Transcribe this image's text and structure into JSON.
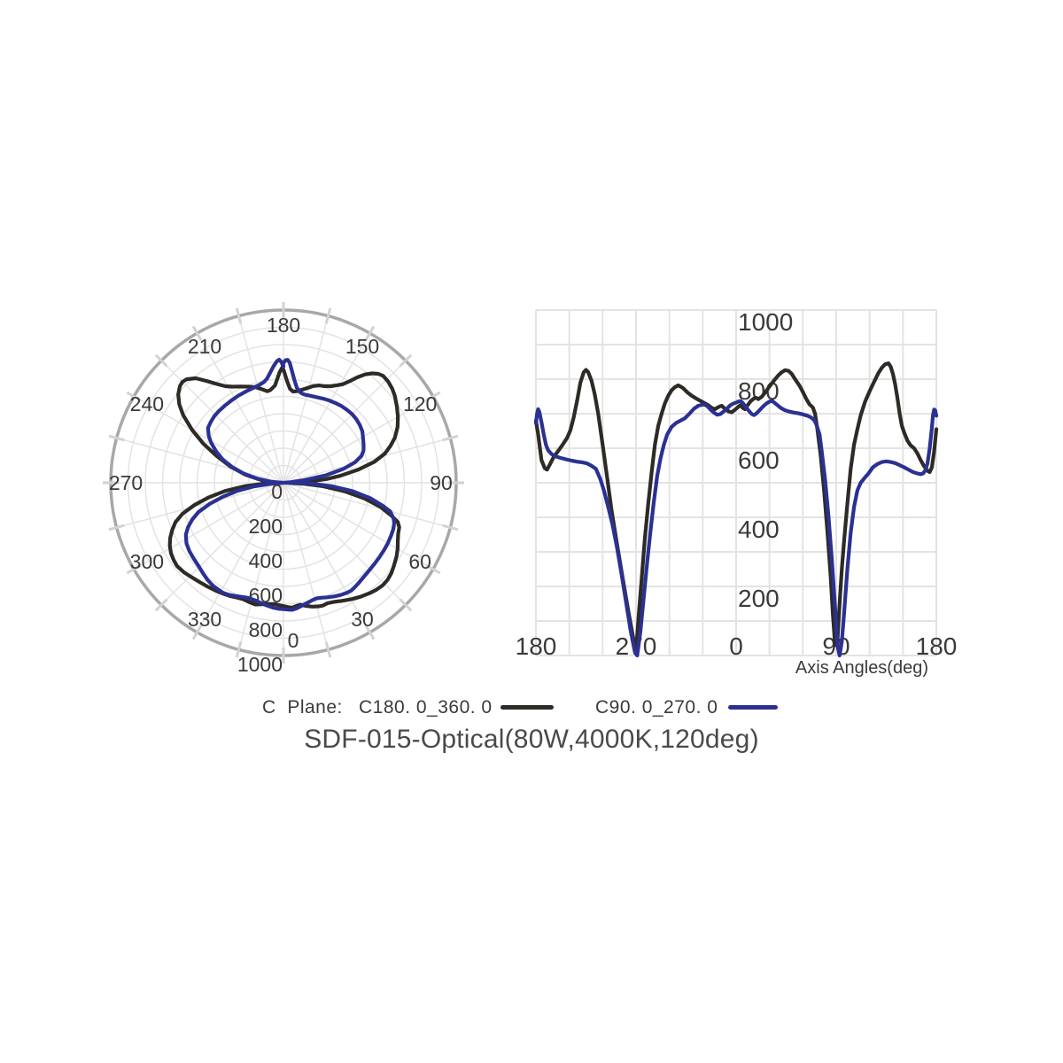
{
  "title": "SDF-015-Optical(80W,4000K,120deg)",
  "legend": {
    "prefix": "C  Plane:",
    "series": [
      {
        "label": "C180. 0_360. 0",
        "color": "#2e2a26"
      },
      {
        "label": "C90. 0_270. 0",
        "color": "#2b3192"
      }
    ]
  },
  "colors": {
    "grid": "#e3e3e3",
    "outer_ring": "#a8a8a8",
    "ring_tick": "#d2d2d2",
    "axis_text": "#3a3a3a",
    "title_text": "#4a4a4a",
    "background": "#ffffff"
  },
  "chart_data": {
    "series": [
      {
        "name": "C180. 0_360. 0",
        "color": "#2e2a26",
        "points": [
          [
            -180,
            680
          ],
          [
            -178,
            640
          ],
          [
            -175,
            565
          ],
          [
            -172,
            542
          ],
          [
            -170,
            538
          ],
          [
            -167,
            556
          ],
          [
            -164,
            575
          ],
          [
            -160,
            592
          ],
          [
            -156,
            610
          ],
          [
            -152,
            630
          ],
          [
            -149,
            652
          ],
          [
            -146,
            690
          ],
          [
            -143,
            738
          ],
          [
            -140,
            790
          ],
          [
            -137,
            820
          ],
          [
            -135,
            827
          ],
          [
            -133,
            820
          ],
          [
            -130,
            795
          ],
          [
            -127,
            755
          ],
          [
            -124,
            700
          ],
          [
            -120,
            610
          ],
          [
            -116,
            515
          ],
          [
            -112,
            420
          ],
          [
            -107,
            320
          ],
          [
            -102,
            225
          ],
          [
            -97,
            130
          ],
          [
            -93,
            60
          ],
          [
            -90,
            8
          ],
          [
            -88,
            100
          ],
          [
            -85,
            220
          ],
          [
            -82,
            340
          ],
          [
            -79,
            440
          ],
          [
            -76,
            530
          ],
          [
            -73,
            610
          ],
          [
            -70,
            665
          ],
          [
            -67,
            700
          ],
          [
            -64,
            730
          ],
          [
            -61,
            752
          ],
          [
            -58,
            768
          ],
          [
            -55,
            777
          ],
          [
            -52,
            782
          ],
          [
            -48,
            775
          ],
          [
            -44,
            762
          ],
          [
            -40,
            752
          ],
          [
            -36,
            744
          ],
          [
            -32,
            737
          ],
          [
            -28,
            730
          ],
          [
            -25,
            724
          ],
          [
            -22,
            717
          ],
          [
            -19,
            713
          ],
          [
            -16,
            719
          ],
          [
            -13,
            723
          ],
          [
            -10,
            714
          ],
          [
            -7,
            707
          ],
          [
            -4,
            704
          ],
          [
            -2,
            709
          ],
          [
            0,
            714
          ],
          [
            2,
            720
          ],
          [
            4,
            725
          ],
          [
            6,
            717
          ],
          [
            8,
            713
          ],
          [
            10,
            723
          ],
          [
            13,
            736
          ],
          [
            16,
            744
          ],
          [
            18,
            746
          ],
          [
            20,
            742
          ],
          [
            23,
            749
          ],
          [
            26,
            761
          ],
          [
            30,
            779
          ],
          [
            34,
            796
          ],
          [
            38,
            811
          ],
          [
            41,
            820
          ],
          [
            44,
            826
          ],
          [
            47,
            824
          ],
          [
            50,
            815
          ],
          [
            53,
            800
          ],
          [
            57,
            781
          ],
          [
            60,
            763
          ],
          [
            63,
            743
          ],
          [
            66,
            727
          ],
          [
            69,
            718
          ],
          [
            71,
            700
          ],
          [
            73,
            655
          ],
          [
            76,
            580
          ],
          [
            79,
            480
          ],
          [
            82,
            360
          ],
          [
            85,
            230
          ],
          [
            87,
            120
          ],
          [
            89,
            30
          ],
          [
            91,
            40
          ],
          [
            93,
            150
          ],
          [
            95,
            250
          ],
          [
            97,
            330
          ],
          [
            100,
            440
          ],
          [
            103,
            540
          ],
          [
            106,
            610
          ],
          [
            109,
            655
          ],
          [
            112,
            695
          ],
          [
            116,
            735
          ],
          [
            120,
            765
          ],
          [
            124,
            792
          ],
          [
            128,
            818
          ],
          [
            131,
            833
          ],
          [
            134,
            843
          ],
          [
            137,
            846
          ],
          [
            139,
            836
          ],
          [
            141,
            815
          ],
          [
            143,
            785
          ],
          [
            145,
            745
          ],
          [
            147,
            700
          ],
          [
            149,
            665
          ],
          [
            151,
            646
          ],
          [
            154,
            622
          ],
          [
            157,
            608
          ],
          [
            160,
            600
          ],
          [
            163,
            585
          ],
          [
            166,
            565
          ],
          [
            169,
            548
          ],
          [
            172,
            535
          ],
          [
            174,
            531
          ],
          [
            176,
            545
          ],
          [
            178,
            590
          ],
          [
            180,
            655
          ]
        ]
      },
      {
        "name": "C90. 0_270. 0",
        "color": "#2b3192",
        "points": [
          [
            -180,
            672
          ],
          [
            -179,
            700
          ],
          [
            -178,
            713
          ],
          [
            -177,
            706
          ],
          [
            -175,
            675
          ],
          [
            -173,
            640
          ],
          [
            -171,
            610
          ],
          [
            -169,
            594
          ],
          [
            -166,
            583
          ],
          [
            -162,
            576
          ],
          [
            -158,
            572
          ],
          [
            -153,
            568
          ],
          [
            -148,
            564
          ],
          [
            -143,
            561
          ],
          [
            -138,
            559
          ],
          [
            -134,
            556
          ],
          [
            -130,
            549
          ],
          [
            -126,
            540
          ],
          [
            -122,
            510
          ],
          [
            -119,
            479
          ],
          [
            -115,
            430
          ],
          [
            -111,
            377
          ],
          [
            -107,
            310
          ],
          [
            -103,
            235
          ],
          [
            -99,
            155
          ],
          [
            -95,
            75
          ],
          [
            -91,
            10
          ],
          [
            -89,
            0
          ],
          [
            -86,
            70
          ],
          [
            -83,
            170
          ],
          [
            -80,
            270
          ],
          [
            -77,
            360
          ],
          [
            -74,
            445
          ],
          [
            -71,
            520
          ],
          [
            -68,
            570
          ],
          [
            -65,
            610
          ],
          [
            -62,
            640
          ],
          [
            -58,
            662
          ],
          [
            -54,
            673
          ],
          [
            -50,
            680
          ],
          [
            -46,
            687
          ],
          [
            -42,
            700
          ],
          [
            -38,
            714
          ],
          [
            -34,
            723
          ],
          [
            -29,
            727
          ],
          [
            -26,
            722
          ],
          [
            -23,
            712
          ],
          [
            -20,
            703
          ],
          [
            -17,
            697
          ],
          [
            -14,
            699
          ],
          [
            -11,
            707
          ],
          [
            -8,
            716
          ],
          [
            -5,
            725
          ],
          [
            -2,
            730
          ],
          [
            0,
            732
          ],
          [
            2,
            735
          ],
          [
            4,
            737
          ],
          [
            6,
            731
          ],
          [
            8,
            722
          ],
          [
            11,
            710
          ],
          [
            14,
            699
          ],
          [
            16,
            696
          ],
          [
            18,
            700
          ],
          [
            21,
            710
          ],
          [
            24,
            720
          ],
          [
            27,
            729
          ],
          [
            30,
            735
          ],
          [
            32,
            737
          ],
          [
            34,
            733
          ],
          [
            37,
            725
          ],
          [
            40,
            717
          ],
          [
            44,
            710
          ],
          [
            48,
            706
          ],
          [
            52,
            703
          ],
          [
            56,
            701
          ],
          [
            60,
            698
          ],
          [
            64,
            694
          ],
          [
            67,
            690
          ],
          [
            70,
            682
          ],
          [
            72,
            670
          ],
          [
            75,
            640
          ],
          [
            77,
            590
          ],
          [
            80,
            510
          ],
          [
            83,
            405
          ],
          [
            86,
            280
          ],
          [
            89,
            140
          ],
          [
            91,
            30
          ],
          [
            93,
            0
          ],
          [
            95,
            40
          ],
          [
            97,
            120
          ],
          [
            100,
            250
          ],
          [
            103,
            355
          ],
          [
            106,
            430
          ],
          [
            109,
            478
          ],
          [
            112,
            500
          ],
          [
            115,
            512
          ],
          [
            119,
            527
          ],
          [
            123,
            545
          ],
          [
            127,
            554
          ],
          [
            131,
            560
          ],
          [
            135,
            562
          ],
          [
            139,
            560
          ],
          [
            143,
            557
          ],
          [
            147,
            551
          ],
          [
            151,
            545
          ],
          [
            155,
            538
          ],
          [
            159,
            531
          ],
          [
            163,
            527
          ],
          [
            166,
            525
          ],
          [
            168,
            527
          ],
          [
            170,
            535
          ],
          [
            172,
            556
          ],
          [
            174,
            600
          ],
          [
            176,
            660
          ],
          [
            177,
            695
          ],
          [
            178,
            712
          ],
          [
            179,
            710
          ],
          [
            180,
            694
          ]
        ]
      }
    ],
    "polar": {
      "type": "polar-line",
      "rmax": 1000,
      "ring_step": 100,
      "spoke_step_deg": 15,
      "angular_labels": [
        {
          "angle": 0,
          "label": "0"
        },
        {
          "angle": 30,
          "label": "30"
        },
        {
          "angle": 60,
          "label": "60"
        },
        {
          "angle": 90,
          "label": "90"
        },
        {
          "angle": 120,
          "label": "120"
        },
        {
          "angle": 150,
          "label": "150"
        },
        {
          "angle": 180,
          "label": "180"
        },
        {
          "angle": 210,
          "label": "210"
        },
        {
          "angle": 240,
          "label": "240"
        },
        {
          "angle": 270,
          "label": "270"
        },
        {
          "angle": 300,
          "label": "300"
        },
        {
          "angle": 330,
          "label": "330"
        }
      ],
      "radial_labels": [
        {
          "value": 0,
          "label": "0"
        },
        {
          "value": 200,
          "label": "200"
        },
        {
          "value": 400,
          "label": "400"
        },
        {
          "value": 600,
          "label": "600"
        },
        {
          "value": 800,
          "label": "800"
        },
        {
          "value": 1000,
          "label": "1000"
        }
      ]
    },
    "cartesian": {
      "type": "line",
      "x_range": [
        -180,
        180
      ],
      "y_range": [
        0,
        1000
      ],
      "grid_x_step_deg": 30,
      "grid_y_step": 100,
      "x_ticks": [
        {
          "pos": -180,
          "label": "180"
        },
        {
          "pos": -90,
          "label": "270"
        },
        {
          "pos": 0,
          "label": "0"
        },
        {
          "pos": 90,
          "label": "90"
        },
        {
          "pos": 180,
          "label": "180"
        }
      ],
      "y_ticks": [
        {
          "value": 1000,
          "label": "1000"
        },
        {
          "value": 800,
          "label": "800"
        },
        {
          "value": 600,
          "label": "600"
        },
        {
          "value": 400,
          "label": "400"
        },
        {
          "value": 200,
          "label": "200"
        }
      ],
      "xlabel": "Axis Angles(deg)"
    }
  }
}
